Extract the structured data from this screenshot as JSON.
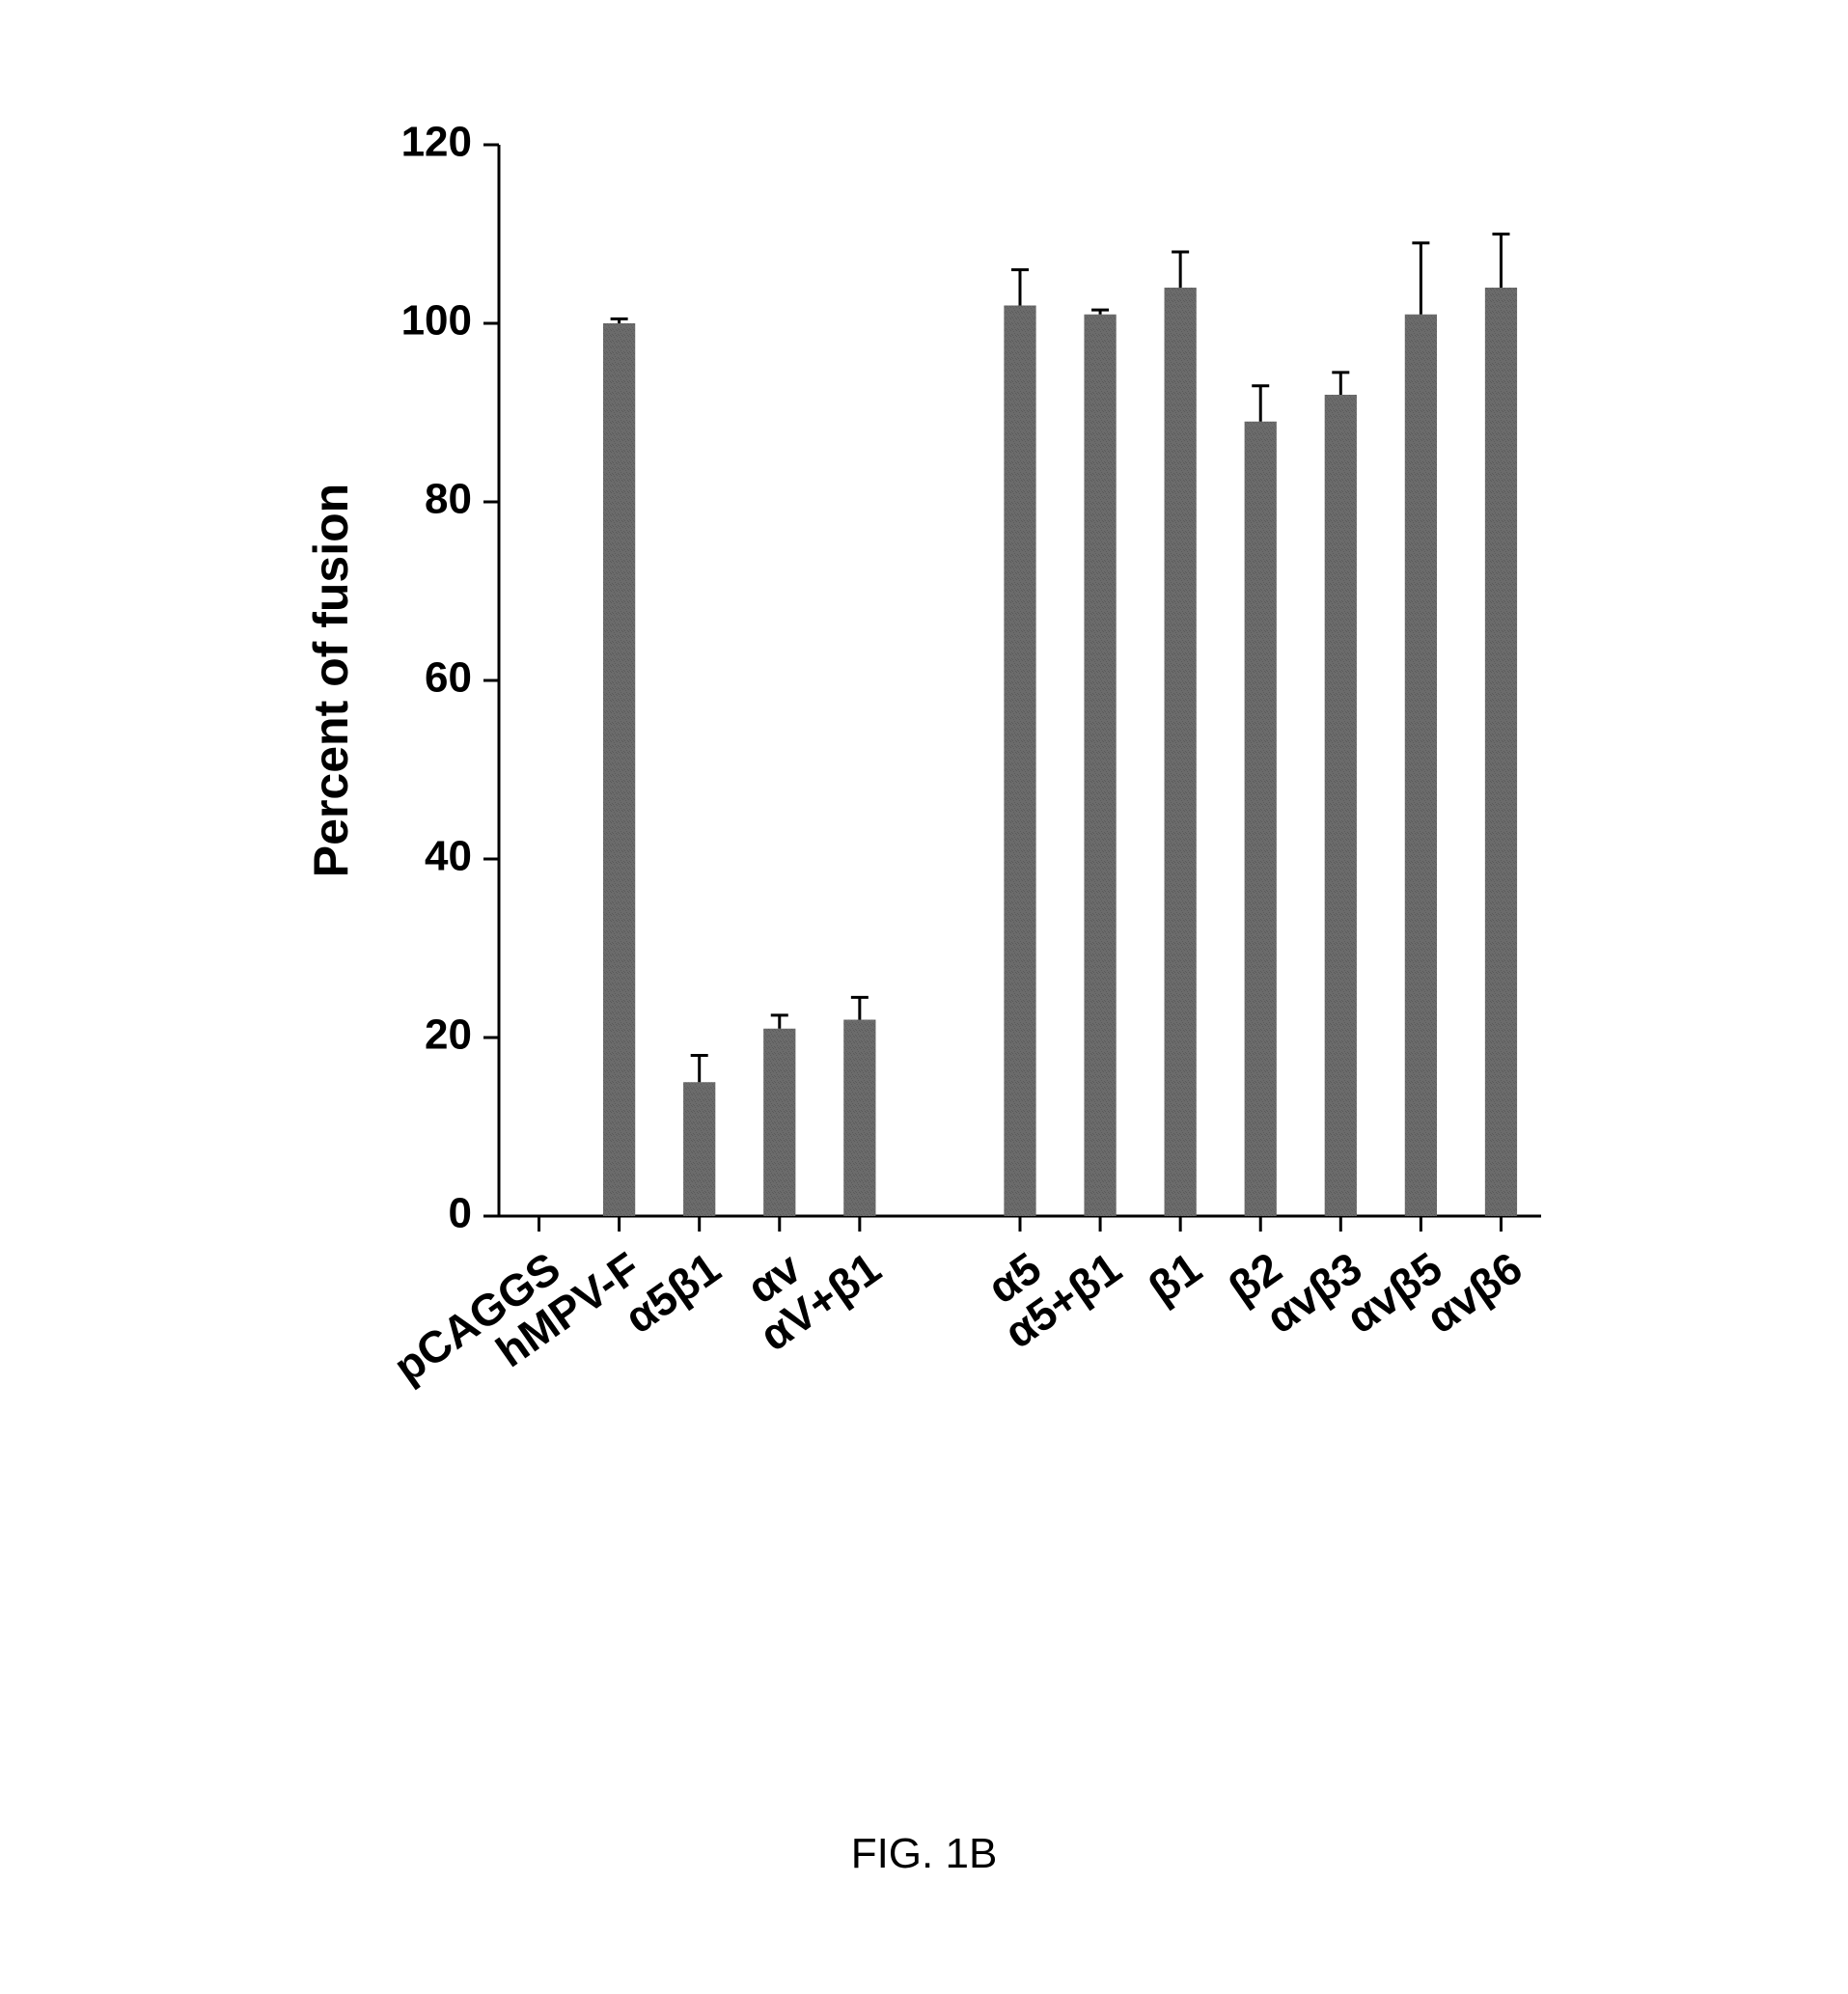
{
  "chart": {
    "type": "bar",
    "ylabel": "Percent of fusion",
    "ylabel_fontsize": 50,
    "ylabel_fontweight": "bold",
    "ylabel_color": "#000000",
    "tick_fontsize": 44,
    "tick_fontweight": "bold",
    "tick_color": "#000000",
    "ylim": [
      0,
      120
    ],
    "ytick_step": 20,
    "background_color": "#ffffff",
    "axis_color": "#000000",
    "axis_width": 3,
    "tick_length": 16,
    "bar_fill": "#6b6b6b",
    "bar_pattern_color": "#5a5a5a",
    "error_color": "#000000",
    "error_width": 3,
    "error_cap": 18,
    "bar_rel_width": 0.4,
    "gap_after_index": 4,
    "categories": [
      "pCAGGS",
      "hMPV-F",
      "α5β1",
      "αv",
      "αV+β1",
      "α5",
      "α5+β1",
      "β1",
      "β2",
      "αvβ3",
      "αvβ5",
      "αvβ6"
    ],
    "values": [
      0,
      100,
      15,
      21,
      22,
      102,
      101,
      104,
      89,
      92,
      101,
      104
    ],
    "err_up": [
      0,
      0.5,
      3,
      1.5,
      2.5,
      4,
      0.5,
      4,
      4,
      2.5,
      8,
      6
    ],
    "xlabel_fontsize": 46,
    "xlabel_fontweight": "bold",
    "xlabel_rotate_deg": 35
  },
  "figure_label": "FIG. 1B",
  "figure_label_fontsize": 44,
  "figure_label_color": "#000000"
}
